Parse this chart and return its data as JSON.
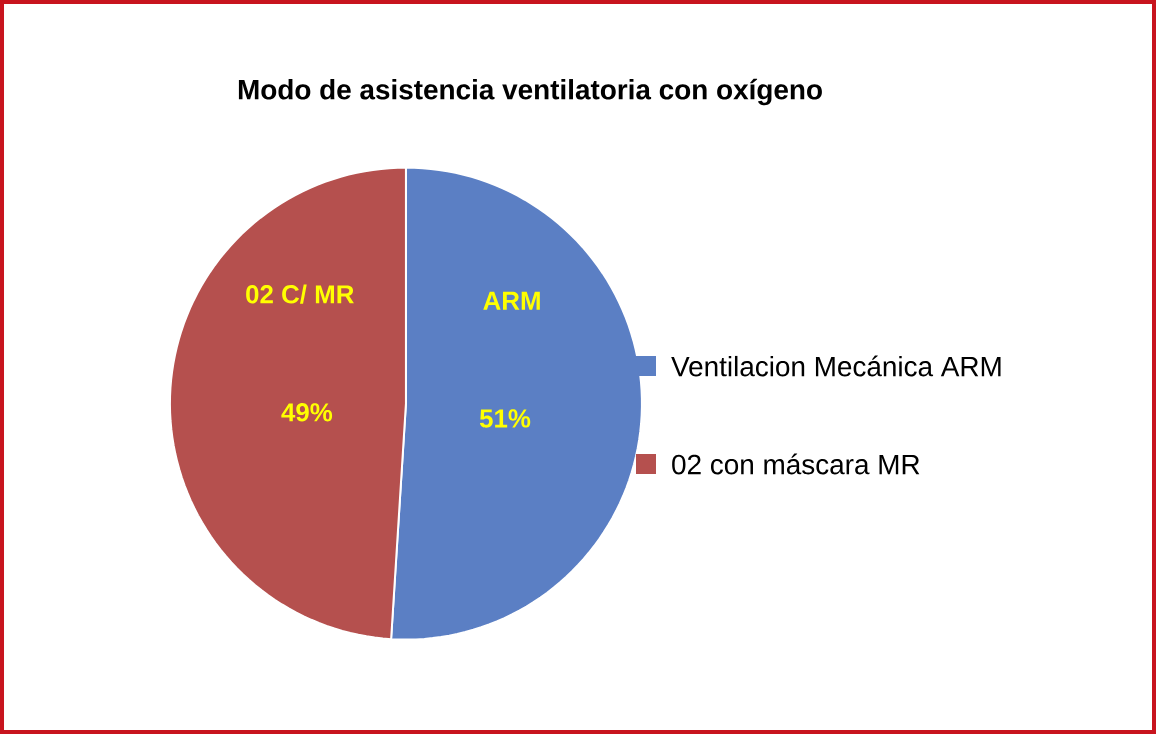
{
  "chart_data": {
    "type": "pie",
    "title": "Modo de asistencia ventilatoria con oxígeno",
    "categories": [
      "Ventilacion Mecánica ARM",
      "02 con máscara MR"
    ],
    "values": [
      51,
      49
    ],
    "colors": [
      "#5b7fc4",
      "#b5504e"
    ],
    "value_labels": [
      "51%",
      "49%"
    ],
    "annotations": [
      {
        "text": "ARM",
        "x": "Ventilacion Mecánica ARM"
      },
      {
        "text": "02 C/ MR",
        "x": "02 con máscara MR"
      }
    ],
    "legend": "right"
  }
}
